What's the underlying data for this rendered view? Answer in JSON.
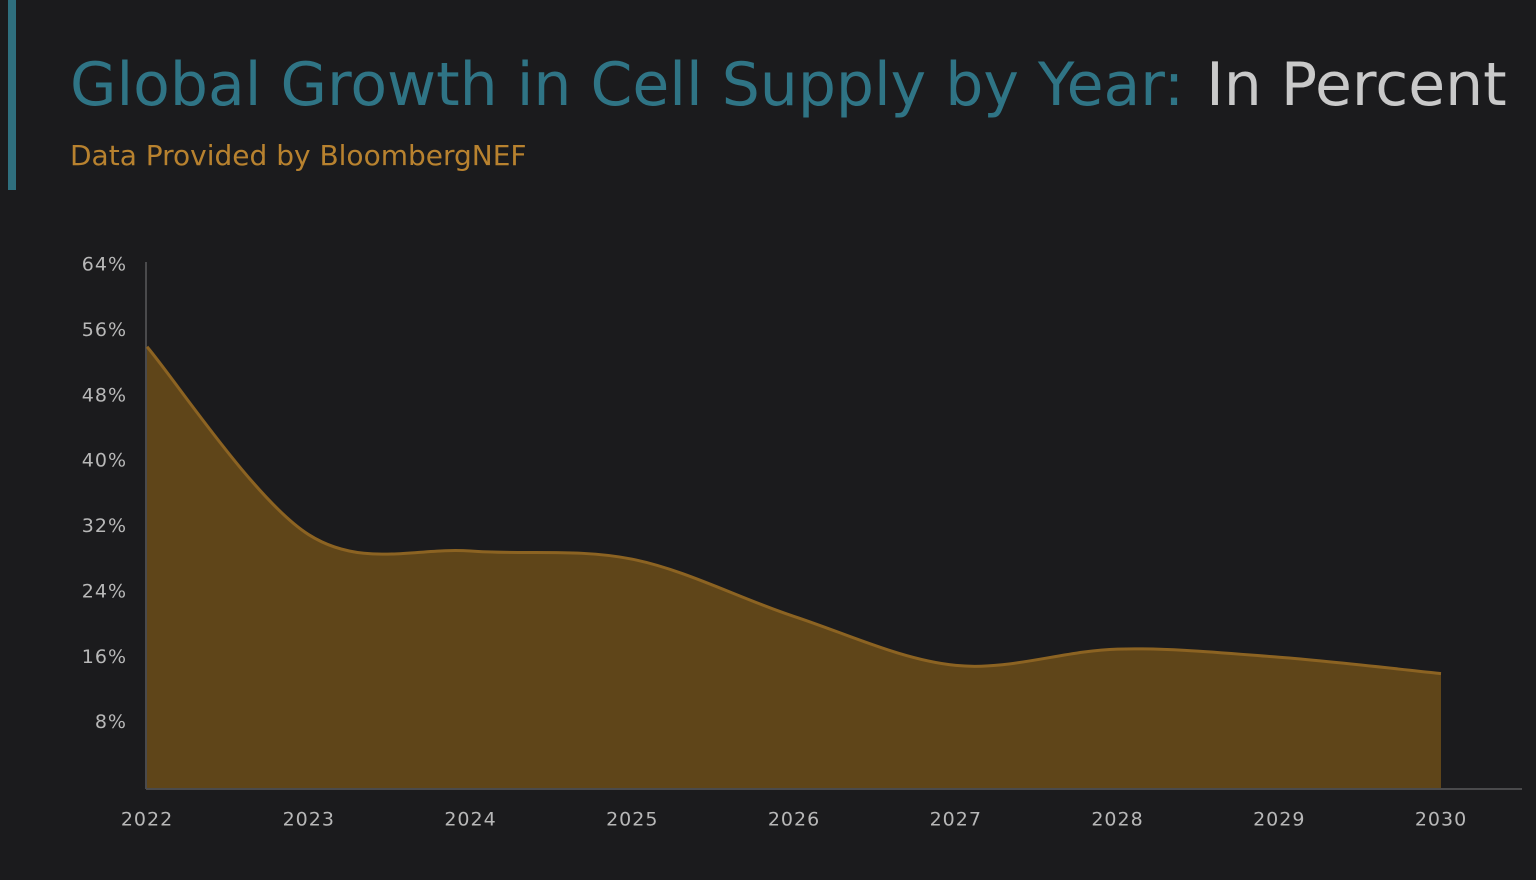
{
  "chart_data": {
    "type": "area",
    "title": "Global Growth in Cell Supply by Year:",
    "title_unit": "In Percent",
    "subtitle": "Data Provided by BloombergNEF",
    "categories": [
      "2022",
      "2023",
      "2024",
      "2025",
      "2026",
      "2027",
      "2028",
      "2029",
      "2030"
    ],
    "values": [
      54,
      31,
      29,
      28,
      21,
      15,
      17,
      16,
      14
    ],
    "color": "#5f4519",
    "line_color": "#8c6322",
    "ylim": [
      0,
      64
    ],
    "yticks": [
      {
        "value": 8,
        "label": "8%"
      },
      {
        "value": 16,
        "label": "16%"
      },
      {
        "value": 24,
        "label": "24%"
      },
      {
        "value": 32,
        "label": "32%"
      },
      {
        "value": 40,
        "label": "40%"
      },
      {
        "value": 48,
        "label": "48%"
      },
      {
        "value": 56,
        "label": "56%"
      },
      {
        "value": 64,
        "label": "64%"
      }
    ],
    "grid": false
  }
}
